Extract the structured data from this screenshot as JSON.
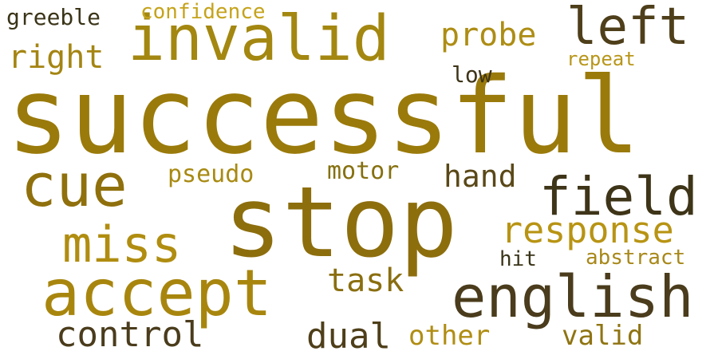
{
  "words": [
    {
      "text": "successful",
      "color": "#9a7a0a"
    },
    {
      "text": "stop",
      "color": "#8d6e0d"
    },
    {
      "text": "invalid",
      "color": "#a38710"
    },
    {
      "text": "accept",
      "color": "#a8860e"
    },
    {
      "text": "english",
      "color": "#4a3c1c"
    },
    {
      "text": "cue",
      "color": "#8f700c"
    },
    {
      "text": "left",
      "color": "#4e3f1a"
    },
    {
      "text": "field",
      "color": "#3e3418"
    },
    {
      "text": "miss",
      "color": "#b08d10"
    },
    {
      "text": "response",
      "color": "#b89414"
    },
    {
      "text": "control",
      "color": "#4a3c1c"
    },
    {
      "text": "probe",
      "color": "#ad8d14"
    },
    {
      "text": "right",
      "color": "#a48512"
    },
    {
      "text": "task",
      "color": "#8a6e10"
    },
    {
      "text": "dual",
      "color": "#4e3f1a"
    },
    {
      "text": "hand",
      "color": "#5a4818"
    },
    {
      "text": "valid",
      "color": "#8f7412"
    },
    {
      "text": "other",
      "color": "#b08e14"
    },
    {
      "text": "pseudo",
      "color": "#a88a12"
    },
    {
      "text": "motor",
      "color": "#86700f"
    },
    {
      "text": "greeble",
      "color": "#3a3418"
    },
    {
      "text": "confidence",
      "color": "#c5a31c"
    },
    {
      "text": "low",
      "color": "#3e3418"
    },
    {
      "text": "repeat",
      "color": "#b8961a"
    },
    {
      "text": "hit",
      "color": "#3a3418"
    },
    {
      "text": "abstract",
      "color": "#a8881a"
    }
  ]
}
